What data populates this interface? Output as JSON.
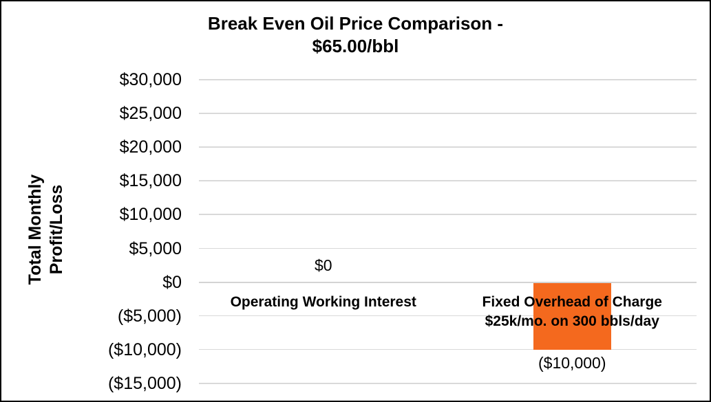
{
  "chart_data": {
    "type": "bar",
    "title": "Break Even Oil Price Comparison - $65.00/bbl",
    "title_lines": [
      "Break Even Oil Price Comparison -",
      "$65.00/bbl"
    ],
    "ylabel": "Total Monthly Profit/Loss",
    "ylabel_lines": [
      "Total Monthly",
      "Profit/Loss"
    ],
    "xlabel": "",
    "ylim": [
      -15000,
      30000
    ],
    "ytick_step": 5000,
    "ytick_values": [
      30000,
      25000,
      20000,
      15000,
      10000,
      5000,
      0,
      -5000,
      -10000,
      -15000
    ],
    "ytick_labels": [
      "$30,000",
      "$25,000",
      "$20,000",
      "$15,000",
      "$10,000",
      "$5,000",
      "$0",
      "($5,000)",
      "($10,000)",
      "($15,000)"
    ],
    "grid": true,
    "legend": false,
    "gridline_color": "#D9D9D9",
    "bar_color": "#F4691E",
    "text_color": "#000000",
    "categories": [
      {
        "label": "Operating Working Interest",
        "label_lines": [
          "Operating Working Interest"
        ],
        "value": 0,
        "data_label": "$0"
      },
      {
        "label": "Fixed Overhead of Charge $25k/mo. on 300 bbls/day",
        "label_lines": [
          "Fixed Overhead of Charge",
          "$25k/mo. on 300 bbls/day"
        ],
        "value": -10000,
        "data_label": "($10,000)"
      }
    ]
  }
}
